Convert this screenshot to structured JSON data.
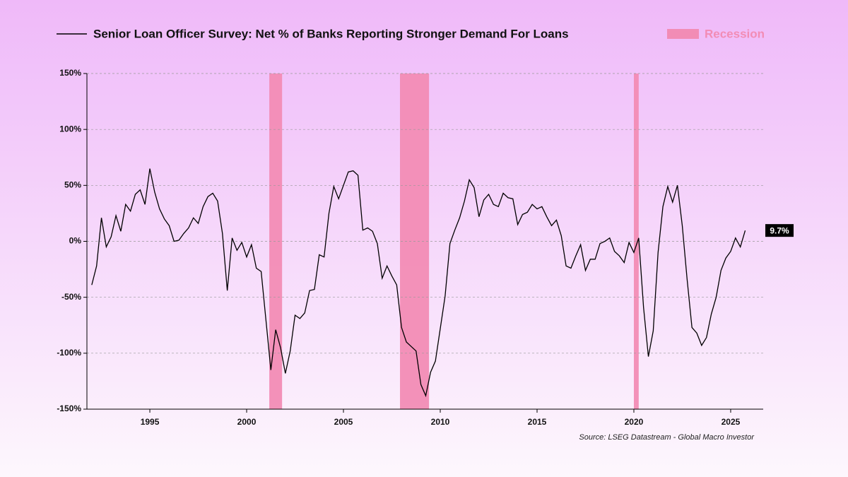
{
  "chart_data": {
    "type": "line",
    "series": [
      {
        "name": "Senior Loan Officer Survey: Net % of Banks Reporting Stronger Demand For Loans",
        "color": "#000000",
        "x": [
          1992,
          1992.25,
          1992.5,
          1992.75,
          1993,
          1993.25,
          1993.5,
          1993.75,
          1994,
          1994.25,
          1994.5,
          1994.75,
          1995,
          1995.25,
          1995.5,
          1995.75,
          1996,
          1996.25,
          1996.5,
          1996.75,
          1997,
          1997.25,
          1997.5,
          1997.75,
          1998,
          1998.25,
          1998.5,
          1998.75,
          1999,
          1999.25,
          1999.5,
          1999.75,
          2000,
          2000.25,
          2000.5,
          2000.75,
          2001,
          2001.25,
          2001.5,
          2001.75,
          2002,
          2002.25,
          2002.5,
          2002.75,
          2003,
          2003.25,
          2003.5,
          2003.75,
          2004,
          2004.25,
          2004.5,
          2004.75,
          2005,
          2005.25,
          2005.5,
          2005.75,
          2006,
          2006.25,
          2006.5,
          2006.75,
          2007,
          2007.25,
          2007.5,
          2007.75,
          2008,
          2008.25,
          2008.5,
          2008.75,
          2009,
          2009.25,
          2009.5,
          2009.75,
          2010,
          2010.25,
          2010.5,
          2010.75,
          2011,
          2011.25,
          2011.5,
          2011.75,
          2012,
          2012.25,
          2012.5,
          2012.75,
          2013,
          2013.25,
          2013.5,
          2013.75,
          2014,
          2014.25,
          2014.5,
          2014.75,
          2015,
          2015.25,
          2015.5,
          2015.75,
          2016,
          2016.25,
          2016.5,
          2016.75,
          2017,
          2017.25,
          2017.5,
          2017.75,
          2018,
          2018.25,
          2018.5,
          2018.75,
          2019,
          2019.25,
          2019.5,
          2019.75,
          2020,
          2020.25,
          2020.5,
          2020.75,
          2021,
          2021.25,
          2021.5,
          2021.75,
          2022,
          2022.25,
          2022.5,
          2022.75,
          2023,
          2023.25,
          2023.5,
          2023.75,
          2024,
          2024.25,
          2024.5,
          2024.75,
          2025,
          2025.25,
          2025.5,
          2025.75
        ],
        "values": [
          -39,
          -22,
          21,
          -5,
          4,
          23,
          9,
          33,
          27,
          42,
          46,
          33,
          65,
          44,
          29,
          20,
          14,
          0,
          1,
          7,
          12,
          21,
          16,
          31,
          40,
          43,
          36,
          7,
          -44,
          3,
          -8,
          -1,
          -14,
          -3,
          -24,
          -27,
          -71,
          -115,
          -79,
          -95,
          -118,
          -98,
          -66,
          -69,
          -64,
          -44,
          -43,
          -12,
          -14,
          25,
          49,
          38,
          50,
          62,
          63,
          59,
          10,
          12,
          9,
          -2,
          -33,
          -22,
          -31,
          -39,
          -77,
          -90,
          -94,
          -98,
          -128,
          -138,
          -117,
          -107,
          -78,
          -49,
          -2,
          10,
          21,
          36,
          55,
          48,
          22,
          37,
          42,
          33,
          31,
          43,
          39,
          38,
          15,
          24,
          26,
          33,
          29,
          31,
          22,
          14,
          19,
          5,
          -22,
          -24,
          -13,
          -3,
          -26,
          -16,
          -16,
          -2,
          0,
          3,
          -9,
          -13,
          -19,
          -1,
          -10,
          3,
          -59,
          -103,
          -80,
          -10,
          31,
          49,
          35,
          50,
          14,
          -34,
          -77,
          -82,
          -93,
          -86,
          -65,
          -50,
          -26,
          -15,
          -9,
          3,
          -5,
          9.7
        ]
      }
    ],
    "recession_name": "Recession",
    "recession_color": "#f28cb5",
    "recessions": [
      {
        "start": 2001.17,
        "end": 2001.83
      },
      {
        "start": 2007.92,
        "end": 2009.42
      },
      {
        "start": 2020.0,
        "end": 2020.25
      }
    ],
    "annotations": [
      {
        "x": 2025.75,
        "value": 9.7,
        "label": "9.7%"
      }
    ],
    "xlim": [
      1991.75,
      2026.68
    ],
    "xticks": [
      1995,
      2000,
      2005,
      2010,
      2015,
      2020,
      2025
    ],
    "ylim": [
      -150,
      150
    ],
    "yticks": [
      {
        "value": -150,
        "label": "-150%"
      },
      {
        "value": -100,
        "label": "-100%"
      },
      {
        "value": -50,
        "label": "-50%"
      },
      {
        "value": 0,
        "label": "0%"
      },
      {
        "value": 50,
        "label": "50%"
      },
      {
        "value": 100,
        "label": "100%"
      },
      {
        "value": 150,
        "label": "150%"
      }
    ],
    "grid": true,
    "legend": "top",
    "source": "Source: LSEG Datastream - Global Macro Investor"
  }
}
